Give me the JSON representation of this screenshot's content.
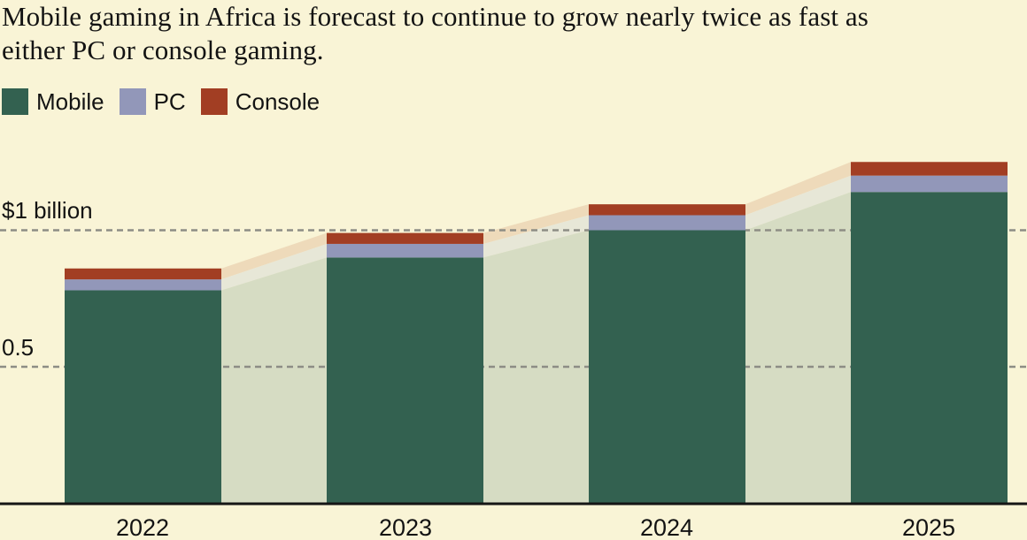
{
  "title": {
    "lines": [
      "Mobile gaming in Africa is forecast to continue to grow nearly twice as fast as",
      "either PC or console gaming."
    ]
  },
  "legend": [
    {
      "label": "Mobile",
      "color": "#336150"
    },
    {
      "label": "PC",
      "color": "#9297b9"
    },
    {
      "label": "Console",
      "color": "#a23e23"
    }
  ],
  "y_axis": {
    "ticks": [
      {
        "label": "$1 billion",
        "value": 1.0
      },
      {
        "label": "0.5",
        "value": 0.5
      }
    ]
  },
  "chart_data": {
    "type": "bar",
    "stacked": true,
    "title": "Mobile gaming in Africa is forecast to continue to grow nearly twice as fast as either PC or console gaming.",
    "categories": [
      "2022",
      "2023",
      "2024",
      "2025"
    ],
    "series": [
      {
        "name": "Mobile",
        "color": "#336150",
        "light_color": "#d6dcc3",
        "values": [
          0.78,
          0.9,
          1.0,
          1.14
        ]
      },
      {
        "name": "PC",
        "color": "#9297b9",
        "light_color": "#e7e7d7",
        "values": [
          0.04,
          0.05,
          0.055,
          0.06
        ]
      },
      {
        "name": "Console",
        "color": "#a23e23",
        "light_color": "#eedaba",
        "values": [
          0.04,
          0.04,
          0.04,
          0.05
        ]
      }
    ],
    "totals": [
      0.86,
      0.99,
      1.095,
      1.25
    ],
    "ylim": [
      0,
      1.3
    ],
    "ytick_values": [
      0.5,
      1.0
    ],
    "grid": "dashed-horizontal",
    "legend_position": "top-left",
    "connected_areas": true
  },
  "colors": {
    "background": "#f9f4d6",
    "text": "#131313",
    "gridline": "#8d8d85",
    "axis": "#151515"
  }
}
